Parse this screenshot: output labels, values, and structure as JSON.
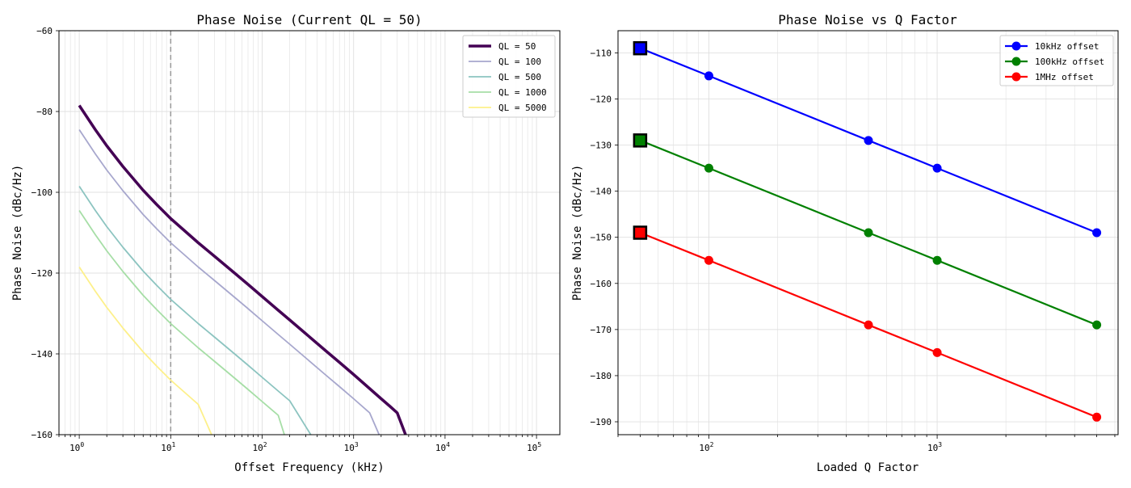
{
  "colors": {
    "ql50": "#440154",
    "ql100": "#a7a7cd",
    "ql500": "#8cc4c0",
    "ql1000": "#a6dea6",
    "ql5000": "#fdf08a",
    "blue": "#0000ff",
    "green": "#008000",
    "red": "#ff0000",
    "grid": "#e0e0e0",
    "marker_line": "#999999"
  },
  "chart_data": [
    {
      "type": "line",
      "title": "Phase Noise (Current QL = 50)",
      "xlabel": "Offset Frequency (kHz)",
      "ylabel": "Phase Noise (dBc/Hz)",
      "xscale": "log",
      "xlim": [
        0.6,
        180000
      ],
      "ylim": [
        -160,
        -60
      ],
      "x_tick_labels": [
        {
          "value": 1,
          "base": "10",
          "exp": "0"
        },
        {
          "value": 10,
          "base": "10",
          "exp": "1"
        },
        {
          "value": 100,
          "base": "10",
          "exp": "2"
        },
        {
          "value": 1000,
          "base": "10",
          "exp": "3"
        },
        {
          "value": 10000,
          "base": "10",
          "exp": "4"
        },
        {
          "value": 100000,
          "base": "10",
          "exp": "5"
        }
      ],
      "y_ticks": [
        -60,
        -80,
        -100,
        -120,
        -140,
        -160
      ],
      "y_tick_labels": [
        "−60",
        "−80",
        "−100",
        "−120",
        "−140",
        "−160"
      ],
      "grid": true,
      "vertical_marker_x": 10,
      "legend_position": "top-right",
      "series": [
        {
          "name": "QL = 50",
          "color_key": "ql50",
          "emphasis": true,
          "x": [
            1,
            1.5,
            2,
            3,
            5,
            7,
            10,
            15,
            20,
            30,
            50,
            70,
            100,
            150,
            200,
            300,
            500,
            700,
            1000,
            1500,
            2000,
            2500,
            3000,
            3700
          ],
          "y": [
            -78.5,
            -84.5,
            -88.5,
            -93.6,
            -99.5,
            -103.0,
            -106.5,
            -110.0,
            -112.5,
            -115.8,
            -120.0,
            -122.8,
            -125.8,
            -129.2,
            -131.6,
            -135.0,
            -139.3,
            -142.1,
            -145.1,
            -148.6,
            -151.1,
            -153.0,
            -154.6,
            -160.0
          ]
        },
        {
          "name": "QL = 100",
          "color_key": "ql100",
          "emphasis": false,
          "x": [
            1,
            1.5,
            2,
            3,
            5,
            7,
            10,
            15,
            20,
            30,
            50,
            70,
            100,
            150,
            200,
            300,
            500,
            700,
            1000,
            1500,
            1900
          ],
          "y": [
            -84.5,
            -90.5,
            -94.5,
            -99.6,
            -105.5,
            -109.0,
            -112.5,
            -116.0,
            -118.5,
            -121.8,
            -126.0,
            -128.8,
            -131.8,
            -135.2,
            -137.6,
            -141.0,
            -145.3,
            -148.1,
            -151.1,
            -154.6,
            -160.0
          ]
        },
        {
          "name": "QL = 500",
          "color_key": "ql500",
          "emphasis": false,
          "x": [
            1,
            1.5,
            2,
            3,
            5,
            7,
            10,
            15,
            20,
            30,
            50,
            70,
            100,
            150,
            200,
            340
          ],
          "y": [
            -98.5,
            -104.5,
            -108.5,
            -113.6,
            -119.5,
            -123.0,
            -126.5,
            -130.0,
            -132.5,
            -135.8,
            -140.0,
            -142.8,
            -145.8,
            -149.2,
            -151.6,
            -160.0
          ]
        },
        {
          "name": "QL = 1000",
          "color_key": "ql1000",
          "emphasis": false,
          "x": [
            1,
            1.5,
            2,
            3,
            5,
            7,
            10,
            15,
            20,
            30,
            50,
            70,
            100,
            150,
            175
          ],
          "y": [
            -104.5,
            -110.5,
            -114.5,
            -119.6,
            -125.5,
            -129.0,
            -132.5,
            -136.0,
            -138.5,
            -141.8,
            -146.0,
            -148.8,
            -151.8,
            -155.2,
            -160.0
          ]
        },
        {
          "name": "QL = 5000",
          "color_key": "ql5000",
          "emphasis": false,
          "x": [
            1,
            1.5,
            2,
            3,
            5,
            7,
            10,
            15,
            20,
            28
          ],
          "y": [
            -118.5,
            -124.5,
            -128.5,
            -133.6,
            -139.5,
            -143.0,
            -146.5,
            -150.0,
            -152.5,
            -160.0
          ]
        }
      ]
    },
    {
      "type": "line",
      "title": "Phase Noise vs Q Factor",
      "xlabel": "Loaded Q Factor",
      "ylabel": "Phase Noise (dBc/Hz)",
      "xscale": "log",
      "xlim": [
        40,
        6200
      ],
      "ylim": [
        -192.8,
        -105.2
      ],
      "x_tick_labels": [
        {
          "value": 100,
          "base": "10",
          "exp": "2"
        },
        {
          "value": 1000,
          "base": "10",
          "exp": "3"
        }
      ],
      "y_ticks": [
        -110,
        -120,
        -130,
        -140,
        -150,
        -160,
        -170,
        -180,
        -190
      ],
      "y_tick_labels": [
        "−110",
        "−120",
        "−130",
        "−140",
        "−150",
        "−160",
        "−170",
        "−180",
        "−190"
      ],
      "grid": true,
      "legend_position": "top-right",
      "highlight_q": 50,
      "series": [
        {
          "name": "10kHz offset",
          "color_key": "blue",
          "x": [
            50,
            100,
            500,
            1000,
            5000
          ],
          "y": [
            -109,
            -115,
            -129,
            -135,
            -149
          ]
        },
        {
          "name": "100kHz offset",
          "color_key": "green",
          "x": [
            50,
            100,
            500,
            1000,
            5000
          ],
          "y": [
            -129,
            -135,
            -149,
            -155,
            -169
          ]
        },
        {
          "name": "1MHz offset",
          "color_key": "red",
          "x": [
            50,
            100,
            500,
            1000,
            5000
          ],
          "y": [
            -149,
            -155,
            -169,
            -175,
            -189
          ]
        }
      ]
    }
  ]
}
